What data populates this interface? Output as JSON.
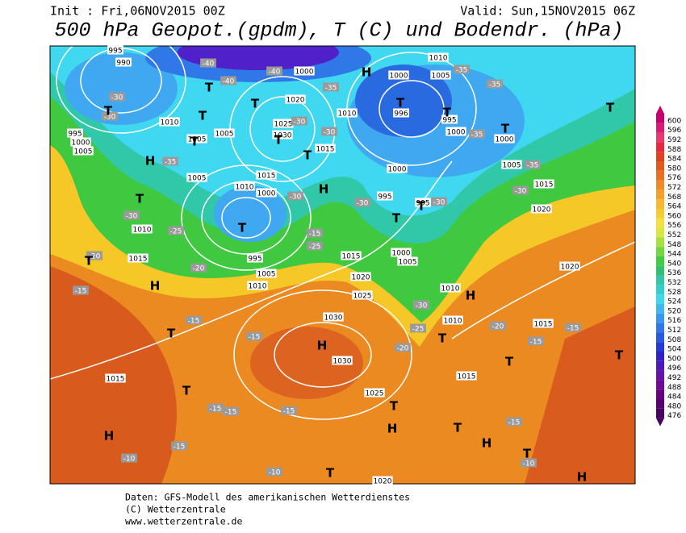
{
  "header": {
    "init": "Init : Fri,06NOV2015 00Z",
    "valid": "Valid: Sun,15NOV2015 06Z",
    "title": "500 hPa Geopot.(gpdm), T (C) und Bodendr. (hPa)"
  },
  "colorbar": {
    "levels": [
      600,
      596,
      592,
      588,
      584,
      580,
      576,
      572,
      568,
      564,
      560,
      556,
      552,
      548,
      544,
      540,
      536,
      532,
      528,
      524,
      520,
      516,
      512,
      508,
      504,
      500,
      496,
      492,
      488,
      484,
      480,
      476
    ],
    "colors": [
      "#c8006e",
      "#d81a78",
      "#e83a6a",
      "#e8283c",
      "#e04020",
      "#e05a1a",
      "#e87020",
      "#f08a24",
      "#f5a028",
      "#f8b830",
      "#f8cc30",
      "#f5e040",
      "#d8e840",
      "#a8e040",
      "#70d840",
      "#40cc40",
      "#30c070",
      "#30c8a8",
      "#30d0d0",
      "#40d8f0",
      "#40b8f0",
      "#3898f0",
      "#3078e8",
      "#2858e0",
      "#2838d8",
      "#3020c8",
      "#5018b8",
      "#6810a8",
      "#700898",
      "#680080",
      "#580070",
      "#480060"
    ]
  },
  "map_labels": {
    "pressure": [
      "995",
      "990",
      "1010",
      "995",
      "1000",
      "1005",
      "1005",
      "1005",
      "1020",
      "1025",
      "1030",
      "1015",
      "1010",
      "1000",
      "1015",
      "1010",
      "1005",
      "1000",
      "1010",
      "1015",
      "995",
      "1005",
      "1010",
      "1015",
      "1020",
      "1025",
      "1030",
      "1030",
      "1025",
      "1020",
      "1015",
      "1015",
      "1010",
      "1010",
      "1015",
      "1020",
      "1020",
      "1015",
      "1005",
      "1000",
      "1000",
      "995",
      "996",
      "1000",
      "1005",
      "1010",
      "1000",
      "995",
      "995",
      "1000",
      "1005"
    ],
    "temperature": [
      "-40",
      "-40",
      "-40",
      "-35",
      "-35",
      "-35",
      "-30",
      "-30",
      "-30",
      "-30",
      "-35",
      "-30",
      "-25",
      "-20",
      "-20",
      "-15",
      "-15",
      "-15",
      "-20",
      "-20",
      "-15",
      "-15",
      "-15",
      "-15",
      "-15",
      "-15",
      "-15",
      "-10",
      "-10",
      "-10",
      "-35",
      "-30",
      "-35",
      "-30",
      "-30",
      "-30",
      "-25",
      "-15",
      "-25",
      "-30"
    ],
    "centers": [
      "H",
      "T",
      "T",
      "T",
      "H",
      "T",
      "T",
      "H",
      "H",
      "T",
      "H",
      "T",
      "H",
      "T",
      "H",
      "T",
      "T",
      "T",
      "T",
      "H",
      "T",
      "T",
      "T",
      "T",
      "H",
      "H",
      "T",
      "T",
      "T",
      "T",
      "T",
      "T",
      "T",
      "T",
      "T"
    ]
  },
  "footer": [
    "Daten: GFS-Modell des amerikanischen Wetterdienstes",
    "(C) Wetterzentrale",
    "www.wetterzentrale.de"
  ]
}
